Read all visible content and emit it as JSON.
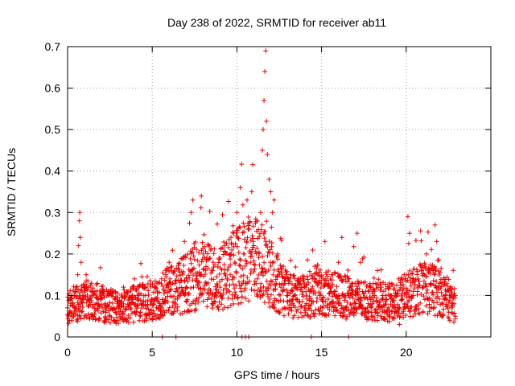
{
  "chart_data": {
    "type": "scatter",
    "title": "Day 238 of 2022, SRMTID for receiver ab11",
    "xlabel": "GPS time / hours",
    "ylabel": "SRMTID / TECUs",
    "xlim": [
      0,
      25
    ],
    "ylim": [
      0,
      0.7
    ],
    "xticks": [
      0,
      5,
      10,
      15,
      20
    ],
    "yticks": [
      0,
      0.1,
      0.2,
      0.3,
      0.4,
      0.5,
      0.6,
      0.7
    ],
    "grid": true,
    "marker": "+",
    "series": [
      {
        "name": "SRMTID",
        "color": "#ee0000",
        "data_density": "approximately 2000 points at ~30 s sampling over 0–23 h",
        "envelope_hours": [
          0,
          1,
          2,
          3,
          4,
          5,
          6,
          7,
          8,
          9,
          10,
          11,
          12,
          13,
          14,
          15,
          16,
          17,
          18,
          19,
          20,
          21,
          22,
          23
        ],
        "typical_values": [
          0.07,
          0.09,
          0.08,
          0.07,
          0.08,
          0.09,
          0.11,
          0.13,
          0.15,
          0.14,
          0.17,
          0.2,
          0.15,
          0.1,
          0.1,
          0.11,
          0.1,
          0.09,
          0.09,
          0.08,
          0.1,
          0.12,
          0.11,
          0.07
        ],
        "sample_points": [
          [
            0.0,
            0.07
          ],
          [
            0.1,
            0.09
          ],
          [
            0.2,
            0.06
          ],
          [
            0.3,
            0.08
          ],
          [
            0.4,
            0.1
          ],
          [
            0.5,
            0.12
          ],
          [
            0.6,
            0.15
          ],
          [
            0.65,
            0.22
          ],
          [
            0.7,
            0.28
          ],
          [
            0.72,
            0.3
          ],
          [
            0.75,
            0.24
          ],
          [
            0.8,
            0.18
          ],
          [
            0.9,
            0.1
          ],
          [
            1.0,
            0.12
          ],
          [
            1.1,
            0.15
          ],
          [
            1.3,
            0.09
          ],
          [
            1.5,
            0.11
          ],
          [
            1.8,
            0.08
          ],
          [
            2.0,
            0.1
          ],
          [
            2.2,
            0.07
          ],
          [
            2.5,
            0.05
          ],
          [
            2.8,
            0.09
          ],
          [
            3.0,
            0.08
          ],
          [
            3.3,
            0.12
          ],
          [
            3.6,
            0.07
          ],
          [
            4.0,
            0.08
          ],
          [
            4.3,
            0.06
          ],
          [
            4.6,
            0.1
          ],
          [
            5.0,
            0.09
          ],
          [
            5.3,
            0.11
          ],
          [
            5.6,
            0.0
          ],
          [
            5.8,
            0.15
          ],
          [
            6.0,
            0.18
          ],
          [
            6.2,
            0.13
          ],
          [
            6.4,
            0.0
          ],
          [
            6.6,
            0.1
          ],
          [
            6.9,
            0.23
          ],
          [
            7.0,
            0.12
          ],
          [
            7.3,
            0.3
          ],
          [
            7.4,
            0.33
          ],
          [
            7.6,
            0.14
          ],
          [
            7.9,
            0.34
          ],
          [
            8.0,
            0.2
          ],
          [
            8.3,
            0.13
          ],
          [
            8.6,
            0.18
          ],
          [
            9.0,
            0.12
          ],
          [
            9.3,
            0.22
          ],
          [
            9.6,
            0.15
          ],
          [
            9.8,
            0.25
          ],
          [
            10.0,
            0.3
          ],
          [
            10.2,
            0.36
          ],
          [
            10.3,
            0.0
          ],
          [
            10.4,
            0.2
          ],
          [
            10.5,
            0.0
          ],
          [
            10.6,
            0.33
          ],
          [
            10.7,
            0.0
          ],
          [
            10.8,
            0.18
          ],
          [
            11.0,
            0.22
          ],
          [
            11.2,
            0.14
          ],
          [
            11.4,
            0.3
          ],
          [
            11.5,
            0.45
          ],
          [
            11.55,
            0.5
          ],
          [
            11.6,
            0.57
          ],
          [
            11.65,
            0.64
          ],
          [
            11.7,
            0.69
          ],
          [
            11.75,
            0.52
          ],
          [
            11.8,
            0.44
          ],
          [
            11.9,
            0.38
          ],
          [
            12.0,
            0.35
          ],
          [
            12.1,
            0.3
          ],
          [
            12.2,
            0.33
          ],
          [
            12.4,
            0.2
          ],
          [
            12.6,
            0.12
          ],
          [
            12.8,
            0.07
          ],
          [
            13.0,
            0.1
          ],
          [
            13.3,
            0.08
          ],
          [
            13.6,
            0.13
          ],
          [
            14.0,
            0.07
          ],
          [
            14.3,
            0.11
          ],
          [
            14.4,
            0.0
          ],
          [
            14.6,
            0.17
          ],
          [
            14.9,
            0.1
          ],
          [
            15.2,
            0.23
          ],
          [
            15.6,
            0.15
          ],
          [
            16.0,
            0.18
          ],
          [
            16.2,
            0.24
          ],
          [
            16.4,
            0.1
          ],
          [
            16.6,
            0.0
          ],
          [
            16.8,
            0.06
          ],
          [
            17.0,
            0.08
          ],
          [
            17.1,
            0.25
          ],
          [
            17.3,
            0.18
          ],
          [
            17.6,
            0.11
          ],
          [
            18.0,
            0.08
          ],
          [
            18.3,
            0.16
          ],
          [
            18.6,
            0.1
          ],
          [
            19.0,
            0.13
          ],
          [
            19.3,
            0.07
          ],
          [
            19.6,
            0.03
          ],
          [
            19.9,
            0.08
          ],
          [
            20.0,
            0.15
          ],
          [
            20.1,
            0.29
          ],
          [
            20.2,
            0.25
          ],
          [
            20.4,
            0.1
          ],
          [
            20.7,
            0.14
          ],
          [
            21.0,
            0.12
          ],
          [
            21.2,
            0.2
          ],
          [
            21.4,
            0.07
          ],
          [
            21.6,
            0.16
          ],
          [
            21.7,
            0.27
          ],
          [
            21.8,
            0.23
          ],
          [
            22.0,
            0.13
          ],
          [
            22.3,
            0.1
          ],
          [
            22.5,
            0.06
          ],
          [
            22.7,
            0.08
          ],
          [
            22.9,
            0.05
          ]
        ]
      }
    ]
  }
}
